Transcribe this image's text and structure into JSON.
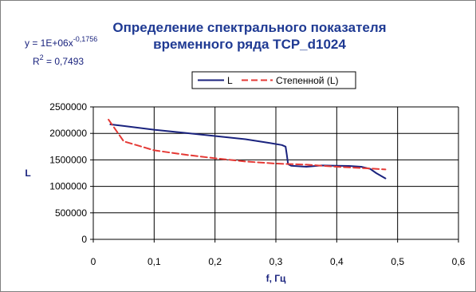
{
  "chart_data": {
    "type": "line",
    "title_lines": [
      "Определение спектрального показателя",
      "временного ряда TCP_d1024"
    ],
    "xlabel": "f, Гц",
    "ylabel": "L",
    "xlim": [
      0,
      0.6
    ],
    "ylim": [
      0,
      2500000
    ],
    "x_ticks": [
      0,
      0.1,
      0.2,
      0.3,
      0.4,
      0.5,
      0.6
    ],
    "x_tick_labels": [
      "0",
      "0,1",
      "0,2",
      "0,3",
      "0,4",
      "0,5",
      "0,6"
    ],
    "y_ticks": [
      0,
      500000,
      1000000,
      1500000,
      2000000,
      2500000
    ],
    "y_tick_labels": [
      "0",
      "500000",
      "1000000",
      "1500000",
      "2000000",
      "2500000"
    ],
    "grid": true,
    "legend_position": "top",
    "equation": {
      "prefix": "y = 1E+06x",
      "exponent": "-0,1756"
    },
    "r_squared": {
      "prefix": "R",
      "exponent": "2",
      "suffix": " = 0,7493"
    },
    "series": [
      {
        "name": "L",
        "style": "solid",
        "color": "#1a237e",
        "points": [
          [
            0.028,
            2170000
          ],
          [
            0.05,
            2140000
          ],
          [
            0.1,
            2070000
          ],
          [
            0.15,
            2010000
          ],
          [
            0.2,
            1950000
          ],
          [
            0.25,
            1890000
          ],
          [
            0.29,
            1820000
          ],
          [
            0.31,
            1780000
          ],
          [
            0.316,
            1750000
          ],
          [
            0.318,
            1600000
          ],
          [
            0.32,
            1420000
          ],
          [
            0.325,
            1390000
          ],
          [
            0.35,
            1370000
          ],
          [
            0.375,
            1395000
          ],
          [
            0.4,
            1390000
          ],
          [
            0.42,
            1385000
          ],
          [
            0.44,
            1370000
          ],
          [
            0.455,
            1330000
          ],
          [
            0.465,
            1250000
          ],
          [
            0.48,
            1150000
          ]
        ]
      },
      {
        "name": "Степенной (L)",
        "style": "dashed",
        "color": "#e53935",
        "points": [
          [
            0.025,
            2260000
          ],
          [
            0.05,
            1850000
          ],
          [
            0.1,
            1680000
          ],
          [
            0.15,
            1600000
          ],
          [
            0.2,
            1530000
          ],
          [
            0.25,
            1470000
          ],
          [
            0.3,
            1430000
          ],
          [
            0.35,
            1410000
          ],
          [
            0.4,
            1370000
          ],
          [
            0.45,
            1340000
          ],
          [
            0.48,
            1320000
          ]
        ]
      }
    ]
  }
}
